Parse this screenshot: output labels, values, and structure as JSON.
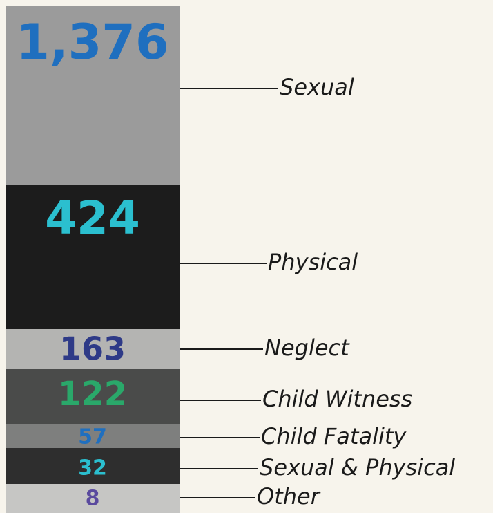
{
  "segments": [
    {
      "value": "1,376",
      "label": "Sexual"
    },
    {
      "value": "424",
      "label": "Physical"
    },
    {
      "value": "163",
      "label": "Neglect"
    },
    {
      "value": "122",
      "label": "Child Witness"
    },
    {
      "value": "57",
      "label": "Child Fatality"
    },
    {
      "value": "32",
      "label": "Sexual & Physical"
    },
    {
      "value": "8",
      "label": "Other"
    }
  ]
}
